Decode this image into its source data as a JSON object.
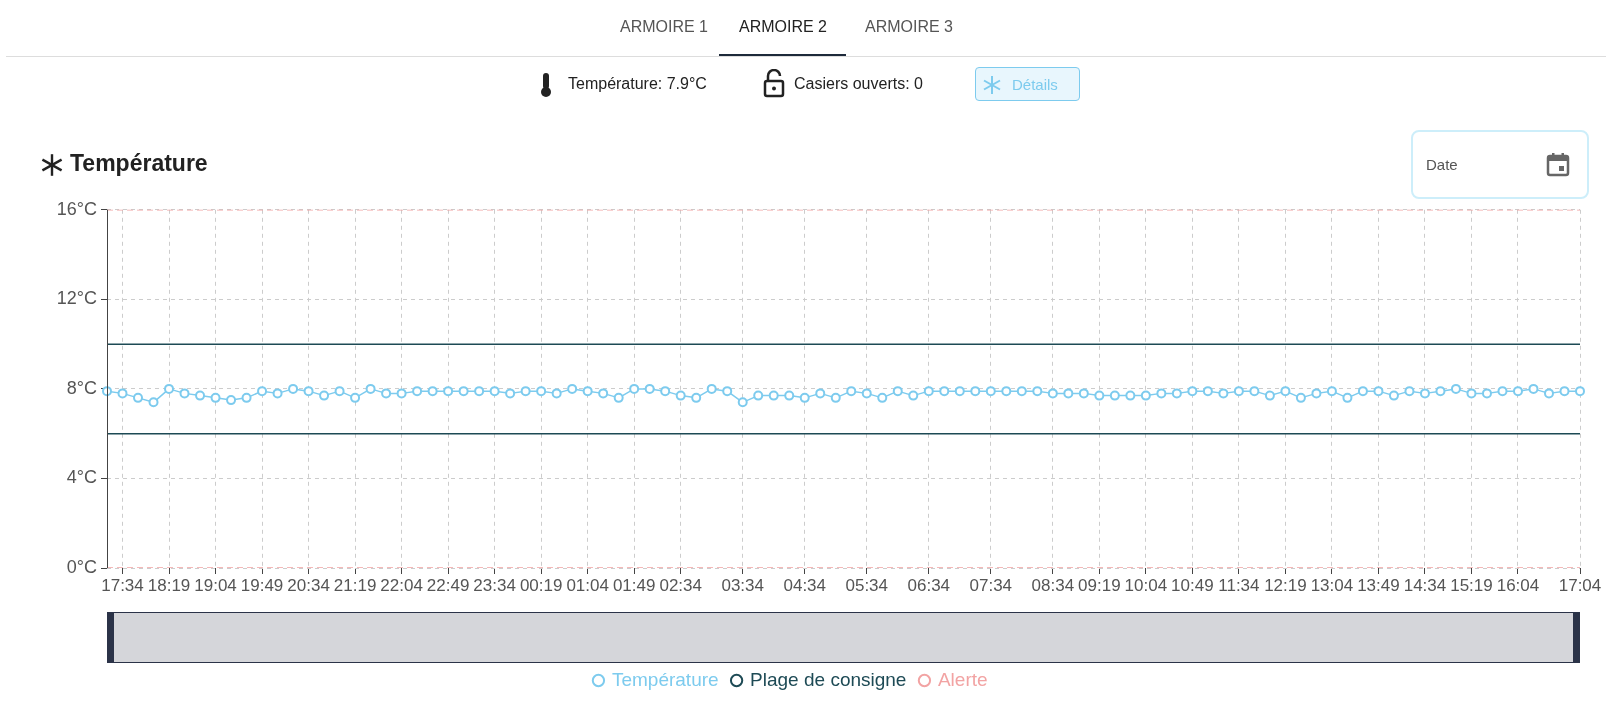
{
  "chart_data": {
    "type": "line",
    "title": "Température",
    "annotations": [
      "ARMOIRE 1",
      "ARMOIRE 2",
      "ARMOIRE 3",
      "Température: 7.9°C",
      "Casiers ouverts: 0",
      "Détails",
      "Date"
    ],
    "categories": [
      null,
      "17:34",
      null,
      null,
      "18:19",
      null,
      null,
      "19:04",
      null,
      null,
      "19:49",
      null,
      null,
      "20:34",
      null,
      null,
      "21:19",
      null,
      null,
      "22:04",
      null,
      null,
      "22:49",
      null,
      null,
      "23:34",
      null,
      null,
      "00:19",
      null,
      null,
      "01:04",
      null,
      null,
      "01:49",
      null,
      null,
      "02:34",
      null,
      null,
      null,
      "03:34",
      null,
      null,
      null,
      "04:34",
      null,
      null,
      null,
      "05:34",
      null,
      null,
      null,
      "06:34",
      null,
      null,
      null,
      "07:34",
      null,
      null,
      null,
      "08:34",
      null,
      null,
      "09:19",
      null,
      null,
      "10:04",
      null,
      null,
      "10:49",
      null,
      null,
      "11:34",
      null,
      null,
      "12:19",
      null,
      null,
      "13:04",
      null,
      null,
      "13:49",
      null,
      null,
      "14:34",
      null,
      null,
      "15:19",
      null,
      null,
      "16:04",
      null,
      null,
      null,
      "17:04"
    ],
    "series": [
      {
        "name": "Température",
        "color": "#7dcbee",
        "marker": "circle",
        "line_style": "solid",
        "values": [
          7.9,
          7.8,
          7.6,
          7.4,
          8.0,
          7.8,
          7.7,
          7.6,
          7.5,
          7.6,
          7.9,
          7.8,
          8.0,
          7.9,
          7.7,
          7.9,
          7.6,
          8.0,
          7.8,
          7.8,
          7.9,
          7.9,
          7.9,
          7.9,
          7.9,
          7.9,
          7.8,
          7.9,
          7.9,
          7.8,
          8.0,
          7.9,
          7.8,
          7.6,
          8.0,
          8.0,
          7.9,
          7.7,
          7.6,
          8.0,
          7.9,
          7.4,
          7.7,
          7.7,
          7.7,
          7.6,
          7.8,
          7.6,
          7.9,
          7.8,
          7.6,
          7.9,
          7.7,
          7.9,
          7.9,
          7.9,
          7.9,
          7.9,
          7.9,
          7.9,
          7.9,
          7.8,
          7.8,
          7.8,
          7.7,
          7.7,
          7.7,
          7.7,
          7.8,
          7.8,
          7.9,
          7.9,
          7.8,
          7.9,
          7.9,
          7.7,
          7.9,
          7.6,
          7.8,
          7.9,
          7.6,
          7.9,
          7.9,
          7.7,
          7.9,
          7.8,
          7.9,
          8.0,
          7.8,
          7.8,
          7.9,
          7.9,
          8.0,
          7.8,
          7.9,
          7.9
        ]
      },
      {
        "name": "Plage de consigne",
        "color": "#1d4a55",
        "marker": "none",
        "line_style": "solid",
        "values": [
          10,
          10,
          10,
          10,
          10,
          10,
          10,
          10,
          10,
          10,
          10,
          10,
          10,
          10,
          10,
          10,
          10,
          10,
          10,
          10,
          10,
          10,
          10,
          10,
          10,
          10,
          10,
          10,
          10,
          10,
          10,
          10,
          10,
          10,
          10,
          10,
          10,
          10,
          10,
          10,
          10,
          10,
          10,
          10,
          10,
          10,
          10,
          10,
          10,
          10,
          10,
          10,
          10,
          10,
          10,
          10,
          10,
          10,
          10,
          10,
          10,
          10,
          10,
          10,
          10,
          10,
          10,
          10,
          10,
          10,
          10,
          10,
          10,
          10,
          10,
          10,
          10,
          10,
          10,
          10,
          10,
          10,
          10,
          10,
          10,
          10,
          10,
          10,
          10,
          10,
          10,
          10,
          10,
          10,
          10,
          10
        ]
      },
      {
        "color": "#1d4a55",
        "marker": "none",
        "line_style": "solid",
        "values": [
          6,
          6,
          6,
          6,
          6,
          6,
          6,
          6,
          6,
          6,
          6,
          6,
          6,
          6,
          6,
          6,
          6,
          6,
          6,
          6,
          6,
          6,
          6,
          6,
          6,
          6,
          6,
          6,
          6,
          6,
          6,
          6,
          6,
          6,
          6,
          6,
          6,
          6,
          6,
          6,
          6,
          6,
          6,
          6,
          6,
          6,
          6,
          6,
          6,
          6,
          6,
          6,
          6,
          6,
          6,
          6,
          6,
          6,
          6,
          6,
          6,
          6,
          6,
          6,
          6,
          6,
          6,
          6,
          6,
          6,
          6,
          6,
          6,
          6,
          6,
          6,
          6,
          6,
          6,
          6,
          6,
          6,
          6,
          6,
          6,
          6,
          6,
          6,
          6,
          6,
          6,
          6,
          6,
          6,
          6,
          6
        ]
      },
      {
        "name": "Alerte",
        "color": "#f2a3a3",
        "marker": "none",
        "line_style": "dashed",
        "values": [
          16,
          16,
          16,
          16,
          16,
          16,
          16,
          16,
          16,
          16,
          16,
          16,
          16,
          16,
          16,
          16,
          16,
          16,
          16,
          16,
          16,
          16,
          16,
          16,
          16,
          16,
          16,
          16,
          16,
          16,
          16,
          16,
          16,
          16,
          16,
          16,
          16,
          16,
          16,
          16,
          16,
          16,
          16,
          16,
          16,
          16,
          16,
          16,
          16,
          16,
          16,
          16,
          16,
          16,
          16,
          16,
          16,
          16,
          16,
          16,
          16,
          16,
          16,
          16,
          16,
          16,
          16,
          16,
          16,
          16,
          16,
          16,
          16,
          16,
          16,
          16,
          16,
          16,
          16,
          16,
          16,
          16,
          16,
          16,
          16,
          16,
          16,
          16,
          16,
          16,
          16,
          16,
          16,
          16,
          16,
          16
        ]
      },
      {
        "color": "#f2a3a3",
        "marker": "none",
        "line_style": "dashed",
        "values": [
          0,
          0,
          0,
          0,
          0,
          0,
          0,
          0,
          0,
          0,
          0,
          0,
          0,
          0,
          0,
          0,
          0,
          0,
          0,
          0,
          0,
          0,
          0,
          0,
          0,
          0,
          0,
          0,
          0,
          0,
          0,
          0,
          0,
          0,
          0,
          0,
          0,
          0,
          0,
          0,
          0,
          0,
          0,
          0,
          0,
          0,
          0,
          0,
          0,
          0,
          0,
          0,
          0,
          0,
          0,
          0,
          0,
          0,
          0,
          0,
          0,
          0,
          0,
          0,
          0,
          0,
          0,
          0,
          0,
          0,
          0,
          0,
          0,
          0,
          0,
          0,
          0,
          0,
          0,
          0,
          0,
          0,
          0,
          0,
          0,
          0,
          0,
          0,
          0,
          0,
          0,
          0,
          0,
          0,
          0,
          0
        ]
      }
    ],
    "ylim": [
      0,
      16
    ],
    "yticks": [
      {
        "value": 0,
        "label": "0°C"
      },
      {
        "value": 4,
        "label": "4°C"
      },
      {
        "value": 8,
        "label": "8°C"
      },
      {
        "value": 12,
        "label": "12°C"
      },
      {
        "value": 16,
        "label": "16°C"
      }
    ],
    "grid": true,
    "legend": "bottom"
  }
}
